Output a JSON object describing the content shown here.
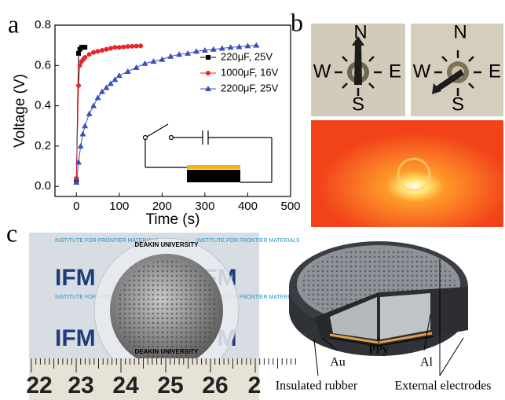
{
  "panel_labels": [
    "a",
    "b",
    "c"
  ],
  "chart_data": {
    "type": "line",
    "xlabel": "Time (s)",
    "ylabel": "Voltage (V)",
    "xlim": [
      -50,
      500
    ],
    "xticks": [
      0,
      100,
      200,
      300,
      400,
      500
    ],
    "ylim": [
      -0.05,
      0.8
    ],
    "yticks": [
      {
        "value": 0,
        "label": "0.0"
      },
      0.2,
      0.4,
      0.6,
      0.8
    ],
    "legend": "center right",
    "series": [
      {
        "name": "220μF, 25V",
        "color": "#000000",
        "marker": "square",
        "x": [
          0,
          5,
          8,
          12,
          16,
          20
        ],
        "values": [
          0.03,
          0.66,
          0.68,
          0.69,
          0.69,
          0.69
        ]
      },
      {
        "name": "1000μF, 16V",
        "color": "#e8262a",
        "marker": "circle",
        "x": [
          0,
          5,
          8,
          12,
          16,
          20,
          30,
          40,
          50,
          60,
          70,
          80,
          90,
          100,
          110,
          120,
          130,
          140,
          150
        ],
        "values": [
          0.04,
          0.5,
          0.6,
          0.62,
          0.63,
          0.64,
          0.655,
          0.665,
          0.67,
          0.675,
          0.68,
          0.685,
          0.69,
          0.69,
          0.692,
          0.694,
          0.695,
          0.696,
          0.697
        ]
      },
      {
        "name": "2200μF, 25V",
        "color": "#3a4fb8",
        "marker": "triangle",
        "x": [
          0,
          5,
          10,
          15,
          20,
          30,
          40,
          50,
          60,
          70,
          80,
          90,
          100,
          120,
          140,
          160,
          180,
          200,
          220,
          240,
          260,
          280,
          300,
          320,
          340,
          360,
          380,
          400,
          420
        ],
        "values": [
          0.02,
          0.12,
          0.2,
          0.26,
          0.3,
          0.36,
          0.4,
          0.44,
          0.47,
          0.49,
          0.51,
          0.53,
          0.55,
          0.57,
          0.59,
          0.61,
          0.62,
          0.63,
          0.645,
          0.655,
          0.66,
          0.67,
          0.675,
          0.68,
          0.685,
          0.69,
          0.693,
          0.697,
          0.7
        ]
      }
    ]
  },
  "compass": {
    "labels": [
      "N",
      "E",
      "S",
      "W"
    ]
  },
  "photo": {
    "logo": "IFM",
    "institute": "INSTITUTE FOR FRONTIER MATERIALS",
    "university": "DEAKIN UNIVERSITY",
    "ruler_labels": [
      "22",
      "23",
      "24",
      "25",
      "26",
      "2"
    ]
  },
  "diagram": {
    "labels": [
      "PPy",
      "Au",
      "Al",
      "Insulated rubber",
      "External electrodes"
    ]
  }
}
